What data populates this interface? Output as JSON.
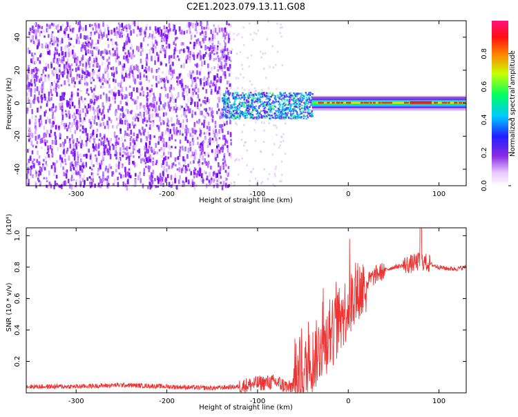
{
  "title": "C2E1.2023.079.13.11.G08",
  "chart_data": [
    {
      "type": "heatmap",
      "xlabel": "Height of straight line (km)",
      "ylabel": "Frequency (Hz)",
      "xlim": [
        -355,
        130
      ],
      "ylim": [
        -50,
        50
      ],
      "xticks": [
        -300,
        -200,
        -100,
        0,
        100
      ],
      "yticks": [
        -40,
        -20,
        0,
        20,
        40
      ],
      "xtick_labels": [
        "-300",
        "-200",
        "-100",
        "0",
        "100"
      ],
      "ytick_labels": [
        "-40",
        "-20",
        "0",
        "20",
        "40"
      ],
      "description_regions": [
        {
          "x_range": [
            -355,
            -130
          ],
          "freq_range": [
            -50,
            50
          ],
          "amplitude": 0.1
        },
        {
          "x_range": [
            -130,
            -40
          ],
          "freq_range": [
            -8,
            8
          ],
          "amplitude": 0.35
        },
        {
          "x_range": [
            -40,
            130
          ],
          "freq_range": [
            -3,
            3
          ],
          "amplitude": 0.85
        }
      ],
      "colorbar": {
        "label": "Normalized spectral amplitude",
        "range": [
          0.0,
          1.0
        ],
        "ticks": [
          0.0,
          0.2,
          0.4,
          0.6,
          0.8
        ],
        "tick_labels": [
          "0.0",
          "0.2",
          "0.4",
          "0.6",
          "0.8"
        ]
      }
    },
    {
      "type": "line",
      "xlabel": "Height of straight line (km)",
      "ylabel": "SNR (10 * v/v)",
      "yscale_label": "(x10⁴)",
      "xlim": [
        -355,
        130
      ],
      "ylim": [
        0,
        1.05
      ],
      "xticks": [
        -300,
        -200,
        -100,
        0,
        100
      ],
      "yticks": [
        0.2,
        0.4,
        0.6,
        0.8,
        1.0
      ],
      "xtick_labels": [
        "-300",
        "-200",
        "-100",
        "0",
        "100"
      ],
      "ytick_labels": [
        "0.2",
        "0.4",
        "0.6",
        "0.8",
        "1.0"
      ],
      "color": "#ee3333",
      "series": [
        {
          "name": "SNR",
          "x": [
            -355,
            -300,
            -250,
            -200,
            -150,
            -120,
            -100,
            -80,
            -65,
            -50,
            -40,
            -30,
            -20,
            -10,
            0,
            10,
            20,
            30,
            40,
            50,
            60,
            70,
            80,
            90,
            100,
            110,
            120,
            130
          ],
          "y": [
            0.04,
            0.04,
            0.05,
            0.04,
            0.03,
            0.04,
            0.06,
            0.07,
            0.03,
            0.12,
            0.2,
            0.3,
            0.36,
            0.45,
            0.56,
            0.62,
            0.7,
            0.75,
            0.78,
            0.8,
            0.81,
            0.82,
            0.84,
            0.82,
            0.8,
            0.79,
            0.79,
            0.8
          ]
        }
      ]
    }
  ]
}
